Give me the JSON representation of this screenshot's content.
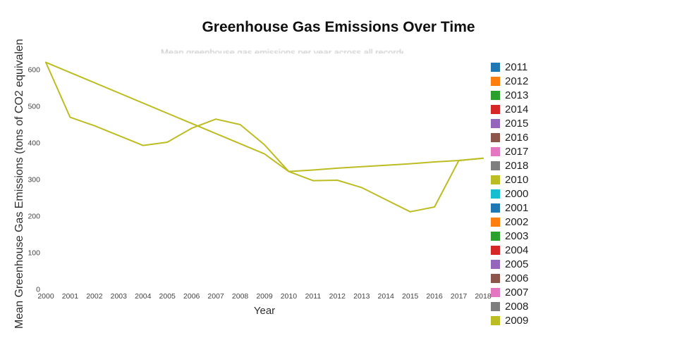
{
  "title": "Greenhouse Gas Emissions Over Time",
  "subtitle": "Mean greenhouse gas emissions per year across all recorded sites",
  "chart_data": {
    "type": "line",
    "title": "Greenhouse Gas Emissions Over Time",
    "xlabel": "Year",
    "ylabel": "Mean Greenhouse Gas Emissions (tons of CO2 equivalent)",
    "xlim": [
      2000,
      2018
    ],
    "ylim": [
      0,
      650
    ],
    "x_ticks": [
      2000,
      2001,
      2002,
      2003,
      2004,
      2005,
      2006,
      2007,
      2008,
      2009,
      2010,
      2011,
      2012,
      2013,
      2014,
      2015,
      2016,
      2017,
      2018
    ],
    "y_ticks": [
      0,
      100,
      200,
      300,
      400,
      500,
      600
    ],
    "grid": false,
    "legend_position": "right",
    "line_color": "#bcbd22",
    "legend": [
      {
        "label": "2011",
        "color": "#1f77b4"
      },
      {
        "label": "2012",
        "color": "#ff7f0e"
      },
      {
        "label": "2013",
        "color": "#2ca02c"
      },
      {
        "label": "2014",
        "color": "#d62728"
      },
      {
        "label": "2015",
        "color": "#9467bd"
      },
      {
        "label": "2016",
        "color": "#8c564b"
      },
      {
        "label": "2017",
        "color": "#e377c2"
      },
      {
        "label": "2018",
        "color": "#7f7f7f"
      },
      {
        "label": "2010",
        "color": "#bcbd22"
      },
      {
        "label": "2000",
        "color": "#17becf"
      },
      {
        "label": "2001",
        "color": "#1f77b4"
      },
      {
        "label": "2002",
        "color": "#ff7f0e"
      },
      {
        "label": "2003",
        "color": "#2ca02c"
      },
      {
        "label": "2004",
        "color": "#d62728"
      },
      {
        "label": "2005",
        "color": "#9467bd"
      },
      {
        "label": "2006",
        "color": "#8c564b"
      },
      {
        "label": "2007",
        "color": "#e377c2"
      },
      {
        "label": "2008",
        "color": "#7f7f7f"
      },
      {
        "label": "2009",
        "color": "#bcbd22"
      }
    ],
    "series": [
      {
        "name": "2009",
        "color": "#bcbd22",
        "x": [
          2000,
          2001,
          2002,
          2003,
          2004,
          2005,
          2006,
          2007,
          2008,
          2009,
          2010,
          2011,
          2012,
          2013,
          2014,
          2015,
          2016,
          2017,
          2018
        ],
        "y": [
          620,
          470,
          447,
          420,
          393,
          402,
          440,
          465,
          450,
          395,
          322,
          297,
          298,
          278,
          245,
          212,
          225,
          352,
          358
        ]
      },
      {
        "name": "2010",
        "color": "#bcbd22",
        "x": [
          2000,
          2009,
          2010,
          2011,
          2012,
          2013,
          2014,
          2015,
          2016,
          2017,
          2018
        ],
        "y": [
          620,
          370,
          322,
          326,
          331,
          335,
          339,
          343,
          348,
          352,
          358
        ]
      }
    ]
  }
}
